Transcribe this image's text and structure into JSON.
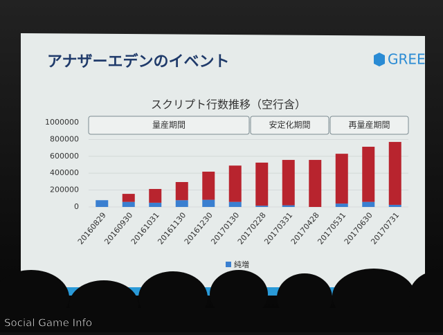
{
  "header": {
    "title": "アナザーエデンのイベント",
    "logo": "GREE"
  },
  "chart_data": {
    "type": "stacked-bar",
    "title": "スクリプト行数推移（空行含）",
    "categories": [
      "20160829",
      "20160930",
      "20161031",
      "20161130",
      "20161230",
      "20170130",
      "20170228",
      "20170331",
      "20170428",
      "20170531",
      "20170630",
      "20170731"
    ],
    "series": [
      {
        "name": "純増",
        "color": "#3a7fd0",
        "values": [
          80000,
          60000,
          50000,
          80000,
          85000,
          60000,
          15000,
          20000,
          0,
          40000,
          60000,
          25000
        ]
      },
      {
        "color": "#b8242e",
        "values": [
          0,
          95000,
          163000,
          215000,
          333000,
          430000,
          510000,
          537000,
          557000,
          590000,
          653000,
          745000
        ]
      }
    ],
    "ylim": [
      0,
      1000000
    ],
    "yticks": [
      0,
      200000,
      400000,
      600000,
      800000,
      1000000
    ],
    "grid": true,
    "periods": [
      "量産期間",
      "安定化期間",
      "再量産期間"
    ],
    "legend": "bottom"
  },
  "watermark": "Social Game Info"
}
